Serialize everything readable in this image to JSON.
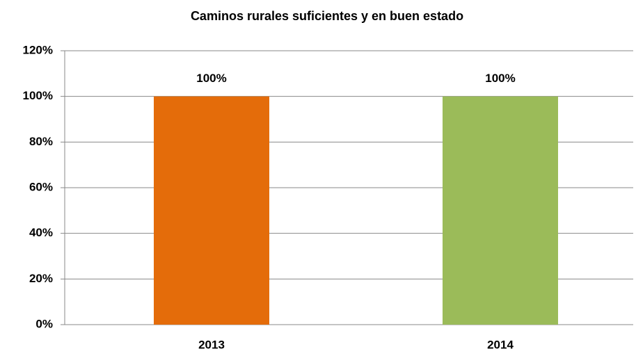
{
  "chart_data": {
    "type": "bar",
    "title": "Caminos rurales suficientes y en buen estado",
    "categories": [
      "2013",
      "2014"
    ],
    "values": [
      100,
      100
    ],
    "value_labels": [
      "100%",
      "100%"
    ],
    "colors": [
      "#e46c0a",
      "#9bbb59"
    ],
    "ylim": [
      0,
      120
    ],
    "yticks": [
      {
        "value": 0,
        "label": "0%"
      },
      {
        "value": 20,
        "label": "20%"
      },
      {
        "value": 40,
        "label": "40%"
      },
      {
        "value": 60,
        "label": "60%"
      },
      {
        "value": 80,
        "label": "80%"
      },
      {
        "value": 100,
        "label": "100%"
      },
      {
        "value": 120,
        "label": "120%"
      }
    ],
    "grid": true
  }
}
